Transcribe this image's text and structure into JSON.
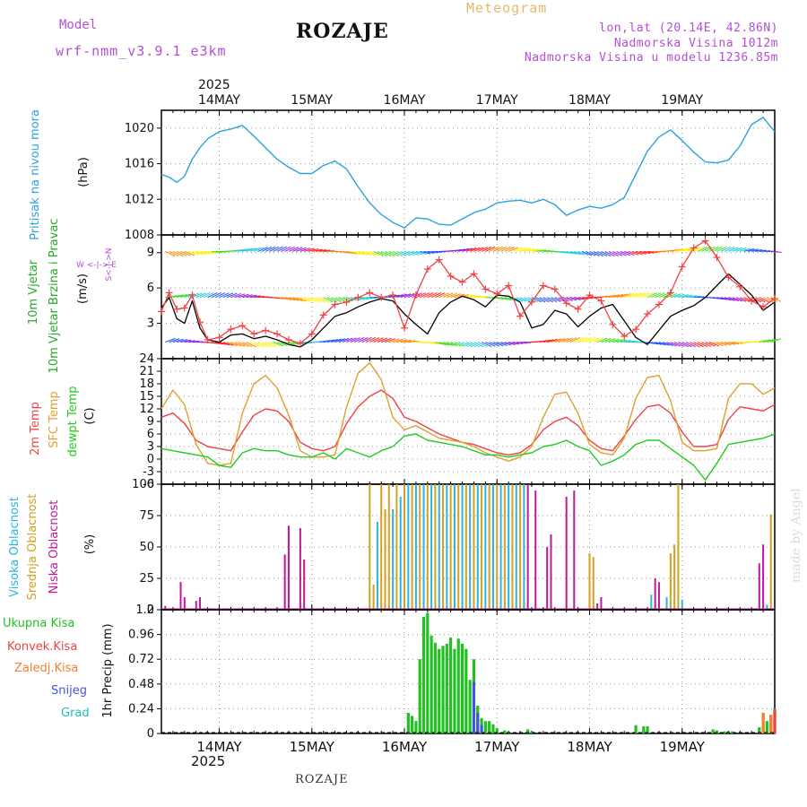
{
  "header": {
    "model_label": "Model",
    "model_name": "wrf-nmm_v3.9.1  e3km",
    "location": "ROZAJE",
    "product": "Meteogram",
    "lonlat": "lon,lat (20.14E, 42.86N)",
    "elevation": "Nadmorska Visina 1012m",
    "model_elevation": "Nadmorska Visina u modelu 1236.85m",
    "footer_location": "ROZAJE",
    "credit": "made by Angel"
  },
  "colors": {
    "pressure": "#2aa2e0",
    "temp2m": "#ee4444",
    "sfc": "#e0a030",
    "dewpt": "#22cc22",
    "cloud_high": "#2ab4e0",
    "cloud_mid": "#d4a020",
    "cloud_low": "#c0189a",
    "precip_total": "#22c022",
    "precip_conv": "#ee4444",
    "precip_grid": "#f08030",
    "snow": "#4455dd",
    "graupel": "#22bbbb",
    "wind_speed": "#000000",
    "wind_gust": "#ee4444",
    "wind_legend": "#b44fd6"
  },
  "time_axis": {
    "year": "2025",
    "days": [
      "14MAY",
      "15MAY",
      "16MAY",
      "17MAY",
      "18MAY",
      "19MAY"
    ],
    "start_hour": -15,
    "end_hour": 144
  },
  "chart_data": [
    {
      "type": "line",
      "panel": "pressure",
      "title_left": "Pritisak na nivou mora",
      "ylabel": "(hPa)",
      "ylim": [
        1008,
        1022
      ],
      "yticks": [
        1008,
        1012,
        1016,
        1020
      ],
      "series": [
        {
          "name": "MSLP",
          "x": [
            -15,
            -13,
            -11,
            -9,
            -7,
            -5,
            -3,
            0,
            3,
            6,
            9,
            12,
            15,
            18,
            21,
            24,
            27,
            30,
            33,
            36,
            39,
            42,
            45,
            48,
            51,
            54,
            57,
            60,
            63,
            66,
            69,
            72,
            75,
            78,
            81,
            84,
            87,
            90,
            93,
            96,
            99,
            102,
            105,
            108,
            111,
            114,
            117,
            120,
            123,
            126,
            129,
            132,
            135,
            138,
            141,
            144
          ],
          "values": [
            1014.8,
            1014.5,
            1013.9,
            1014.6,
            1016.5,
            1017.8,
            1018.8,
            1019.6,
            1019.9,
            1020.3,
            1019.1,
            1017.8,
            1016.5,
            1015.6,
            1014.9,
            1014.9,
            1015.8,
            1016.3,
            1015.4,
            1013.4,
            1011.6,
            1010.3,
            1009.4,
            1008.8,
            1009.9,
            1009.8,
            1009.2,
            1009.1,
            1009.8,
            1010.5,
            1010.9,
            1011.6,
            1011.8,
            1011.9,
            1011.6,
            1012.0,
            1011.4,
            1010.2,
            1010.8,
            1011.2,
            1011.0,
            1011.4,
            1012.2,
            1014.8,
            1017.4,
            1019.0,
            1019.8,
            1018.6,
            1017.3,
            1016.2,
            1016.1,
            1016.4,
            1018.0,
            1020.4,
            1021.2,
            1019.6
          ]
        }
      ]
    },
    {
      "type": "line",
      "panel": "wind",
      "title_left": "10m Vjetar Brzina i Pravac",
      "ylabel": "(m/s)",
      "compass": "W <-|-> E",
      "compass_vertical": "S<-|->N",
      "ylim": [
        0,
        10.5
      ],
      "yticks": [
        3,
        6,
        9
      ],
      "series": [
        {
          "name": "wind speed",
          "x": [
            -15,
            -13,
            -11,
            -9,
            -7,
            -5,
            -3,
            0,
            3,
            6,
            9,
            12,
            15,
            18,
            21,
            24,
            27,
            30,
            33,
            36,
            39,
            42,
            45,
            48,
            51,
            54,
            57,
            60,
            63,
            66,
            69,
            72,
            75,
            78,
            81,
            84,
            87,
            90,
            93,
            96,
            99,
            102,
            105,
            108,
            111,
            114,
            117,
            120,
            123,
            126,
            129,
            132,
            135,
            138,
            141,
            144
          ],
          "values": [
            4.3,
            5.2,
            3.4,
            3.0,
            4.9,
            2.6,
            1.6,
            1.4,
            2.0,
            2.1,
            1.7,
            1.9,
            1.6,
            1.2,
            1.0,
            1.6,
            2.6,
            3.6,
            3.9,
            4.4,
            4.8,
            5.1,
            4.9,
            3.8,
            2.9,
            2.1,
            3.9,
            4.8,
            5.3,
            5.0,
            4.4,
            5.4,
            5.3,
            4.8,
            2.6,
            2.9,
            4.1,
            3.8,
            2.7,
            3.6,
            4.3,
            4.6,
            3.2,
            1.8,
            1.2,
            2.4,
            3.6,
            4.1,
            4.5,
            5.2,
            6.2,
            7.2,
            6.3,
            5.4,
            4.1,
            4.8
          ]
        },
        {
          "name": "gust",
          "x": [
            -15,
            -13,
            -11,
            -9,
            -7,
            -5,
            -3,
            0,
            3,
            6,
            9,
            12,
            15,
            18,
            21,
            24,
            27,
            30,
            33,
            36,
            39,
            42,
            45,
            48,
            51,
            54,
            57,
            60,
            63,
            66,
            69,
            72,
            75,
            78,
            81,
            84,
            87,
            90,
            93,
            96,
            99,
            102,
            105,
            108,
            111,
            114,
            117,
            120,
            123,
            126,
            129,
            132,
            135,
            138,
            141,
            144
          ],
          "values": [
            4.0,
            5.6,
            4.2,
            4.3,
            5.4,
            3.1,
            1.6,
            1.8,
            2.5,
            2.8,
            2.1,
            2.4,
            2.1,
            1.6,
            1.3,
            2.1,
            3.7,
            4.6,
            4.8,
            5.2,
            5.6,
            5.2,
            5.4,
            2.6,
            5.4,
            7.6,
            8.4,
            7.0,
            6.5,
            7.2,
            5.9,
            5.5,
            6.2,
            3.6,
            4.8,
            6.2,
            5.9,
            4.7,
            4.2,
            5.4,
            4.9,
            2.9,
            1.9,
            2.5,
            3.8,
            4.6,
            5.6,
            7.8,
            9.4,
            10.0,
            8.6,
            6.9,
            6.1,
            4.9,
            4.4,
            5.1
          ]
        }
      ]
    },
    {
      "type": "line",
      "panel": "temperature",
      "title_left_1": "2m Temp",
      "title_left_2": "SFC Temp",
      "title_left_3": "dewpt Temp",
      "ylabel": "(C)",
      "ylim": [
        -6,
        24
      ],
      "yticks": [
        -6,
        -3,
        0,
        3,
        6,
        9,
        12,
        15,
        18,
        21,
        24
      ],
      "series": [
        {
          "name": "2m Temp",
          "x": [
            -15,
            -12,
            -9,
            -6,
            -3,
            0,
            3,
            6,
            9,
            12,
            15,
            18,
            21,
            24,
            27,
            30,
            33,
            36,
            39,
            42,
            45,
            48,
            51,
            54,
            57,
            60,
            63,
            66,
            69,
            72,
            75,
            78,
            81,
            84,
            87,
            90,
            93,
            96,
            99,
            102,
            105,
            108,
            111,
            114,
            117,
            120,
            123,
            126,
            129,
            132,
            135,
            138,
            141,
            144
          ],
          "values": [
            10.0,
            11.0,
            8.5,
            4.5,
            3.0,
            2.5,
            2.0,
            6.5,
            10.5,
            12.0,
            11.5,
            9.0,
            4.0,
            2.5,
            2.0,
            3.0,
            8.5,
            12.5,
            15.0,
            16.5,
            14.5,
            10.0,
            9.0,
            7.5,
            6.0,
            5.0,
            4.0,
            3.5,
            2.5,
            1.5,
            1.0,
            1.5,
            3.5,
            7.0,
            9.0,
            10.0,
            8.0,
            4.5,
            2.5,
            2.0,
            5.5,
            9.5,
            12.5,
            13.0,
            11.0,
            6.5,
            3.0,
            3.0,
            3.5,
            9.5,
            12.5,
            12.0,
            11.5,
            13.0
          ]
        },
        {
          "name": "SFC Temp",
          "x": [
            -15,
            -12,
            -9,
            -6,
            -3,
            0,
            3,
            6,
            9,
            12,
            15,
            18,
            21,
            24,
            27,
            30,
            33,
            36,
            39,
            42,
            45,
            48,
            51,
            54,
            57,
            60,
            63,
            66,
            69,
            72,
            75,
            78,
            81,
            84,
            87,
            90,
            93,
            96,
            99,
            102,
            105,
            108,
            111,
            114,
            117,
            120,
            123,
            126,
            129,
            132,
            135,
            138,
            141,
            144
          ],
          "values": [
            12.0,
            16.5,
            13.0,
            3.5,
            -1.0,
            -1.5,
            -1.0,
            11.0,
            18.0,
            20.0,
            17.0,
            10.5,
            2.0,
            0.5,
            0.5,
            1.0,
            12.5,
            20.5,
            23.0,
            19.0,
            10.0,
            7.0,
            8.0,
            6.5,
            5.0,
            4.5,
            4.0,
            3.0,
            1.5,
            0.5,
            -0.5,
            0.5,
            3.0,
            10.0,
            15.5,
            16.0,
            11.0,
            3.5,
            1.5,
            1.0,
            5.0,
            14.5,
            19.5,
            20.0,
            14.0,
            4.0,
            2.0,
            2.0,
            2.5,
            14.5,
            18.0,
            18.0,
            15.5,
            17.0
          ]
        },
        {
          "name": "dewpt Temp",
          "x": [
            -15,
            -12,
            -9,
            -6,
            -3,
            0,
            3,
            6,
            9,
            12,
            15,
            18,
            21,
            24,
            27,
            30,
            33,
            36,
            39,
            42,
            45,
            48,
            51,
            54,
            57,
            60,
            63,
            66,
            69,
            72,
            75,
            78,
            81,
            84,
            87,
            90,
            93,
            96,
            99,
            102,
            105,
            108,
            111,
            114,
            117,
            120,
            123,
            126,
            129,
            132,
            135,
            138,
            141,
            144
          ],
          "values": [
            2.5,
            2.0,
            1.5,
            1.0,
            0.5,
            -1.5,
            -2.0,
            1.5,
            2.5,
            2.0,
            2.0,
            1.0,
            0.5,
            0.5,
            1.5,
            0.0,
            2.5,
            1.5,
            0.5,
            2.0,
            3.0,
            5.5,
            6.0,
            4.5,
            4.0,
            3.5,
            3.0,
            2.0,
            1.0,
            1.0,
            0.5,
            1.0,
            1.5,
            3.0,
            3.5,
            4.5,
            3.0,
            2.0,
            -1.5,
            -0.5,
            1.0,
            3.5,
            4.5,
            4.5,
            2.5,
            0.5,
            -1.5,
            -5.0,
            -1.0,
            3.5,
            4.0,
            4.5,
            5.0,
            6.0
          ]
        }
      ]
    },
    {
      "type": "bar",
      "panel": "cloud",
      "title_left_1": "Visoka Oblacnost",
      "title_left_2": "Srednja Oblacnost",
      "title_left_3": "Niska Oblacnost",
      "ylabel": "(%)",
      "ylim": [
        0,
        100
      ],
      "yticks": [
        0,
        25,
        50,
        75,
        100
      ],
      "series": [
        {
          "name": "Niska",
          "x": [
            -14,
            -10,
            -9,
            -6,
            -5,
            17,
            18,
            21,
            22,
            80,
            82,
            85,
            86,
            90,
            92,
            98,
            99,
            113,
            114,
            140,
            141
          ],
          "values": [
            3,
            22,
            10,
            7,
            10,
            44,
            67,
            65,
            40,
            100,
            95,
            50,
            60,
            90,
            95,
            5,
            10,
            25,
            22,
            37,
            52
          ]
        },
        {
          "name": "Srednja",
          "x": [
            39,
            40,
            42,
            43,
            44,
            46,
            48,
            50,
            52,
            54,
            56,
            58,
            60,
            62,
            64,
            66,
            68,
            70,
            72,
            74,
            76,
            78,
            96,
            97,
            117,
            118,
            119,
            143
          ],
          "values": [
            100,
            20,
            100,
            80,
            100,
            100,
            100,
            100,
            100,
            100,
            100,
            100,
            100,
            100,
            100,
            100,
            100,
            100,
            100,
            100,
            100,
            100,
            45,
            42,
            45,
            52,
            100,
            76
          ]
        },
        {
          "name": "Visoka",
          "x": [
            41,
            45,
            47,
            49,
            51,
            53,
            55,
            57,
            59,
            61,
            63,
            65,
            67,
            69,
            71,
            73,
            75,
            77,
            79,
            112,
            116,
            120,
            142
          ],
          "values": [
            70,
            80,
            90,
            100,
            100,
            100,
            100,
            100,
            100,
            100,
            100,
            100,
            100,
            100,
            100,
            100,
            100,
            100,
            100,
            12,
            10,
            8,
            4
          ]
        }
      ]
    },
    {
      "type": "bar",
      "panel": "precip",
      "title_left_1": "Ukupna Kisa",
      "title_left_2": "Konvek.Kisa",
      "title_left_3": "Zaledj.Kisa",
      "title_left_4": "Snijeg",
      "title_left_5": "Grad",
      "ylabel": "1hr Precip (mm)",
      "ylim": [
        0,
        1.2
      ],
      "yticks": [
        0,
        0.24,
        0.48,
        0.72,
        0.96,
        1.2
      ],
      "series": [
        {
          "name": "Ukupna Kisa",
          "x": [
            49,
            50,
            51,
            52,
            53,
            54,
            55,
            56,
            57,
            58,
            59,
            60,
            61,
            62,
            63,
            64,
            65,
            66,
            67,
            68,
            69,
            70,
            71,
            72,
            74,
            75,
            80,
            81,
            108,
            110,
            111,
            128,
            129,
            131,
            132,
            133,
            140,
            141,
            142,
            143,
            144
          ],
          "values": [
            0.2,
            0.17,
            0.12,
            0.72,
            1.13,
            1.17,
            0.95,
            0.88,
            0.82,
            0.85,
            0.87,
            0.93,
            0.82,
            0.92,
            0.87,
            0.82,
            0.52,
            0.72,
            0.27,
            0.15,
            0.12,
            0.12,
            0.09,
            0.05,
            0.03,
            0.02,
            0.04,
            0.02,
            0.08,
            0.07,
            0.07,
            0.04,
            0.03,
            0.02,
            0.02,
            0.02,
            0.06,
            0.2,
            0.12,
            0.18,
            0.24
          ]
        },
        {
          "name": "Snijeg",
          "x": [
            66,
            67,
            68
          ],
          "values": [
            0.5,
            0.2,
            0.08
          ]
        },
        {
          "name": "Konvek.Kisa",
          "x": [
            144
          ],
          "values": [
            0.23
          ]
        },
        {
          "name": "Zaledj.Kisa",
          "x": [
            141,
            143
          ],
          "values": [
            0.2,
            0.18
          ]
        }
      ]
    }
  ]
}
